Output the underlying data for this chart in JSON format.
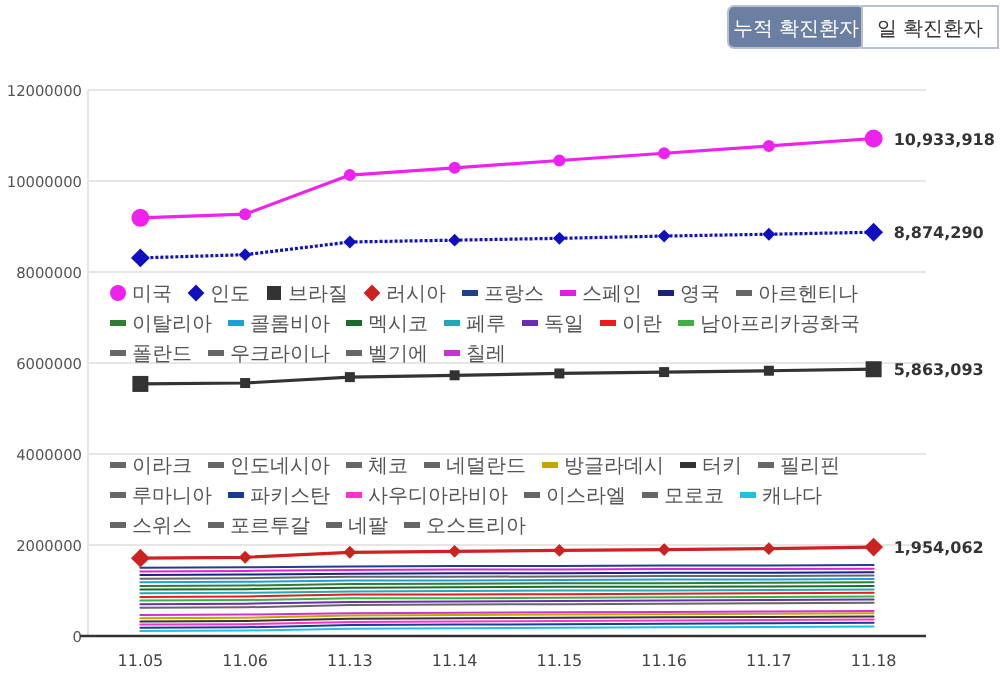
{
  "chart_data": {
    "type": "line",
    "categories": [
      "11.05",
      "11.06",
      "11.13",
      "11.14",
      "11.15",
      "11.16",
      "11.17",
      "11.18"
    ],
    "ylim": [
      0,
      12000000
    ],
    "yticks": [
      0,
      2000000,
      4000000,
      6000000,
      8000000,
      10000000,
      12000000
    ],
    "grid": "y",
    "legend": "center",
    "annotations": [
      "누적 확진환자",
      "일 확진환자"
    ],
    "series": [
      {
        "name": "미국",
        "color": "#ee22ee",
        "marker": "circle",
        "line_style": "solid",
        "values": [
          9190000,
          9270000,
          10130000,
          10290000,
          10450000,
          10610000,
          10770000,
          10933918
        ],
        "value_labels": [
          null,
          null,
          null,
          null,
          null,
          null,
          null,
          "10,933,918"
        ]
      },
      {
        "name": "인도",
        "color": "#1010c0",
        "marker": "diamond",
        "line_style": "dotted",
        "values": [
          8310000,
          8380000,
          8660000,
          8700000,
          8740000,
          8790000,
          8830000,
          8874290
        ],
        "value_labels": [
          null,
          null,
          null,
          null,
          null,
          null,
          null,
          "8,874,290"
        ]
      },
      {
        "name": "브라질",
        "color": "#333333",
        "marker": "square",
        "line_style": "solid",
        "values": [
          5540000,
          5560000,
          5690000,
          5730000,
          5770000,
          5800000,
          5830000,
          5863093
        ],
        "value_labels": [
          null,
          null,
          null,
          null,
          null,
          null,
          null,
          "5,863,093"
        ]
      },
      {
        "name": "러시아",
        "color": "#cc2222",
        "marker": "diamond",
        "line_style": "solid",
        "values": [
          1710000,
          1730000,
          1840000,
          1860000,
          1880000,
          1900000,
          1920000,
          1954062
        ],
        "value_labels": [
          null,
          null,
          null,
          null,
          null,
          null,
          null,
          "1,954,062"
        ]
      },
      {
        "name": "프랑스",
        "color": "#1f3f8f",
        "values": [
          1500000,
          1510000,
          1530000,
          1540000,
          1540000,
          1550000,
          1550000,
          1560000
        ]
      },
      {
        "name": "스페인",
        "color": "#dd22dd",
        "values": [
          1420000,
          1430000,
          1450000,
          1460000,
          1460000,
          1470000,
          1470000,
          1480000
        ]
      },
      {
        "name": "영국",
        "color": "#1a237e",
        "values": [
          1340000,
          1350000,
          1370000,
          1380000,
          1380000,
          1390000,
          1390000,
          1400000
        ]
      },
      {
        "name": "아르헨티나",
        "color": "#666666",
        "values": [
          1260000,
          1270000,
          1300000,
          1300000,
          1310000,
          1320000,
          1320000,
          1330000
        ]
      },
      {
        "name": "이탈리아",
        "color": "#2e7d32",
        "values": [
          1100000,
          1110000,
          1140000,
          1150000,
          1160000,
          1160000,
          1170000,
          1180000
        ]
      },
      {
        "name": "콜롬비아",
        "color": "#1e9fd6",
        "values": [
          1180000,
          1190000,
          1220000,
          1220000,
          1230000,
          1240000,
          1240000,
          1250000
        ]
      },
      {
        "name": "멕시코",
        "color": "#1b6b2b",
        "values": [
          1020000,
          1030000,
          1060000,
          1070000,
          1080000,
          1080000,
          1090000,
          1100000
        ]
      },
      {
        "name": "페루",
        "color": "#26a6b8",
        "values": [
          940000,
          950000,
          980000,
          990000,
          1000000,
          1000000,
          1010000,
          1020000
        ]
      },
      {
        "name": "독일",
        "color": "#6a2fb0",
        "values": [
          700000,
          710000,
          750000,
          760000,
          770000,
          780000,
          790000,
          800000
        ]
      },
      {
        "name": "이란",
        "color": "#e02020",
        "values": [
          860000,
          870000,
          910000,
          910000,
          920000,
          930000,
          940000,
          950000
        ]
      },
      {
        "name": "남아프리카공화국",
        "color": "#3cb043",
        "values": [
          780000,
          790000,
          830000,
          830000,
          840000,
          850000,
          860000,
          870000
        ]
      },
      {
        "name": "폴란드",
        "color": "#666666",
        "values": [
          620000,
          630000,
          680000,
          690000,
          700000,
          710000,
          720000,
          730000
        ]
      },
      {
        "name": "우크라이나",
        "color": "#666666",
        "values": [
          null,
          null,
          null,
          null,
          null,
          null,
          null,
          null
        ]
      },
      {
        "name": "벨기에",
        "color": "#666666",
        "values": [
          null,
          null,
          null,
          null,
          null,
          null,
          null,
          null
        ]
      },
      {
        "name": "칠레",
        "color": "#cc33cc",
        "values": [
          460000,
          470000,
          500000,
          510000,
          520000,
          530000,
          540000,
          550000
        ]
      },
      {
        "name": "이라크",
        "color": "#666666",
        "values": [
          null,
          null,
          null,
          null,
          null,
          null,
          null,
          null
        ]
      },
      {
        "name": "인도네시아",
        "color": "#666666",
        "values": [
          null,
          null,
          null,
          null,
          null,
          null,
          null,
          null
        ]
      },
      {
        "name": "체코",
        "color": "#666666",
        "values": [
          null,
          null,
          null,
          null,
          null,
          null,
          null,
          null
        ]
      },
      {
        "name": "네덜란드",
        "color": "#666666",
        "values": [
          null,
          null,
          null,
          null,
          null,
          null,
          null,
          null
        ]
      },
      {
        "name": "방글라데시",
        "color": "#c8a400",
        "values": [
          390000,
          400000,
          450000,
          460000,
          470000,
          480000,
          490000,
          500000
        ]
      },
      {
        "name": "터키",
        "color": "#333333",
        "values": [
          320000,
          330000,
          380000,
          390000,
          400000,
          410000,
          420000,
          430000
        ]
      },
      {
        "name": "필리핀",
        "color": "#666666",
        "values": [
          null,
          null,
          null,
          null,
          null,
          null,
          null,
          null
        ]
      },
      {
        "name": "루마니아",
        "color": "#666666",
        "values": [
          null,
          null,
          null,
          null,
          null,
          null,
          null,
          null
        ]
      },
      {
        "name": "파키스탄",
        "color": "#1a3a9a",
        "values": [
          180000,
          190000,
          240000,
          250000,
          260000,
          270000,
          280000,
          290000
        ]
      },
      {
        "name": "사우디아라비아",
        "color": "#ff33cc",
        "values": [
          250000,
          260000,
          310000,
          320000,
          330000,
          340000,
          350000,
          360000
        ]
      },
      {
        "name": "이스라엘",
        "color": "#666666",
        "values": [
          null,
          null,
          null,
          null,
          null,
          null,
          null,
          null
        ]
      },
      {
        "name": "모로코",
        "color": "#666666",
        "values": [
          null,
          null,
          null,
          null,
          null,
          null,
          null,
          null
        ]
      },
      {
        "name": "캐나다",
        "color": "#22c0e0",
        "values": [
          110000,
          120000,
          160000,
          170000,
          180000,
          190000,
          200000,
          210000
        ]
      },
      {
        "name": "스위스",
        "color": "#666666",
        "values": [
          null,
          null,
          null,
          null,
          null,
          null,
          null,
          null
        ]
      },
      {
        "name": "포르투갈",
        "color": "#666666",
        "values": [
          null,
          null,
          null,
          null,
          null,
          null,
          null,
          null
        ]
      },
      {
        "name": "네팔",
        "color": "#666666",
        "values": [
          null,
          null,
          null,
          null,
          null,
          null,
          null,
          null
        ]
      },
      {
        "name": "오스트리아",
        "color": "#666666",
        "values": [
          null,
          null,
          null,
          null,
          null,
          null,
          null,
          null
        ]
      }
    ]
  }
}
